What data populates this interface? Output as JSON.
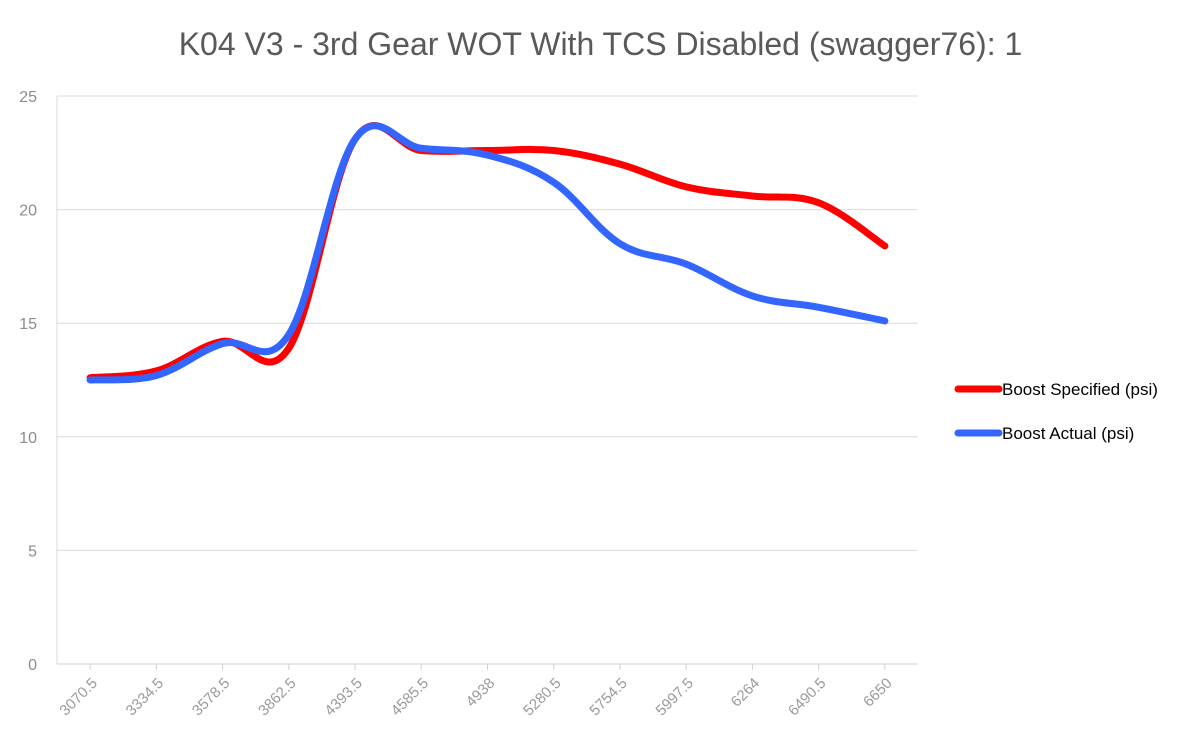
{
  "chart_data": {
    "type": "line",
    "title": "K04 V3 - 3rd Gear WOT With TCS Disabled (swagger76): 1",
    "categories": [
      "3070.5",
      "3334.5",
      "3578.5",
      "3862.5",
      "4393.5",
      "4585.5",
      "4938",
      "5280.5",
      "5754.5",
      "5997.5",
      "6264",
      "6490.5",
      "6650"
    ],
    "series": [
      {
        "name": "Boost Specified (psi)",
        "color": "#ff0000",
        "values": [
          12.6,
          12.9,
          14.2,
          13.9,
          23.1,
          22.6,
          22.6,
          22.6,
          22.0,
          21.0,
          20.6,
          20.3,
          18.4
        ]
      },
      {
        "name": "Boost Actual (psi)",
        "color": "#3366ff",
        "values": [
          12.5,
          12.7,
          14.1,
          14.5,
          23.1,
          22.7,
          22.4,
          21.2,
          18.5,
          17.6,
          16.2,
          15.7,
          15.1
        ]
      }
    ],
    "ylim": [
      0,
      25
    ],
    "yticks": [
      0,
      5,
      10,
      15,
      20,
      25
    ],
    "grid": true,
    "legend": "right"
  }
}
